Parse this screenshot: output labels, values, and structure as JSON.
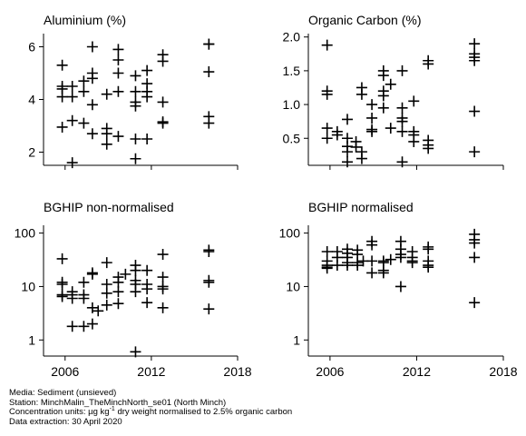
{
  "chart_data": [
    {
      "type": "scatter",
      "title": "Aluminium (%)",
      "xlim": [
        2004.5,
        2018
      ],
      "ylim": [
        1.5,
        6.5
      ],
      "log": false,
      "xticks": [
        2006,
        2012,
        2018
      ],
      "xtick_labels": [
        "",
        "",
        ""
      ],
      "yticks": [
        2,
        4,
        6
      ],
      "ytick_labels": [
        "2",
        "4",
        "6"
      ],
      "points": [
        {
          "x": 2005.8,
          "y": 5.3
        },
        {
          "x": 2005.8,
          "y": 4.5
        },
        {
          "x": 2005.8,
          "y": 4.4
        },
        {
          "x": 2005.8,
          "y": 4.1
        },
        {
          "x": 2005.8,
          "y": 2.95
        },
        {
          "x": 2006.5,
          "y": 4.5
        },
        {
          "x": 2006.5,
          "y": 4.1
        },
        {
          "x": 2006.5,
          "y": 3.2
        },
        {
          "x": 2006.5,
          "y": 1.6
        },
        {
          "x": 2007.3,
          "y": 4.7
        },
        {
          "x": 2007.3,
          "y": 4.3
        },
        {
          "x": 2007.3,
          "y": 3.1
        },
        {
          "x": 2007.9,
          "y": 6.0
        },
        {
          "x": 2007.9,
          "y": 5.0
        },
        {
          "x": 2007.9,
          "y": 4.8
        },
        {
          "x": 2007.9,
          "y": 3.8
        },
        {
          "x": 2007.9,
          "y": 2.7
        },
        {
          "x": 2008.9,
          "y": 4.2
        },
        {
          "x": 2008.9,
          "y": 2.9
        },
        {
          "x": 2008.9,
          "y": 2.7
        },
        {
          "x": 2008.9,
          "y": 2.3
        },
        {
          "x": 2009.7,
          "y": 5.9
        },
        {
          "x": 2009.7,
          "y": 5.5
        },
        {
          "x": 2009.7,
          "y": 5.0
        },
        {
          "x": 2009.7,
          "y": 4.3
        },
        {
          "x": 2009.7,
          "y": 2.6
        },
        {
          "x": 2010.9,
          "y": 4.9
        },
        {
          "x": 2010.9,
          "y": 4.3
        },
        {
          "x": 2010.9,
          "y": 3.9
        },
        {
          "x": 2010.9,
          "y": 3.75
        },
        {
          "x": 2010.9,
          "y": 2.5
        },
        {
          "x": 2010.9,
          "y": 1.75
        },
        {
          "x": 2011.7,
          "y": 5.1
        },
        {
          "x": 2011.7,
          "y": 4.6
        },
        {
          "x": 2011.7,
          "y": 4.3
        },
        {
          "x": 2011.7,
          "y": 4.1
        },
        {
          "x": 2011.7,
          "y": 2.5
        },
        {
          "x": 2012.8,
          "y": 5.7
        },
        {
          "x": 2012.8,
          "y": 5.45
        },
        {
          "x": 2012.8,
          "y": 3.9
        },
        {
          "x": 2012.8,
          "y": 3.15
        },
        {
          "x": 2012.8,
          "y": 3.1
        },
        {
          "x": 2016.0,
          "y": 6.1
        },
        {
          "x": 2016.0,
          "y": 6.1
        },
        {
          "x": 2016.0,
          "y": 5.05
        },
        {
          "x": 2016.0,
          "y": 3.35
        },
        {
          "x": 2016.0,
          "y": 3.1
        }
      ]
    },
    {
      "type": "scatter",
      "title": "Organic Carbon (%)",
      "xlim": [
        2004.5,
        2018
      ],
      "ylim": [
        0.1,
        2.05
      ],
      "log": false,
      "xticks": [
        2006,
        2012,
        2018
      ],
      "xtick_labels": [
        "",
        "",
        ""
      ],
      "yticks": [
        0.5,
        1.0,
        1.5,
        2.0
      ],
      "ytick_labels": [
        "0.5",
        "1.0",
        "1.5",
        "2.0"
      ],
      "points": [
        {
          "x": 2005.8,
          "y": 1.88
        },
        {
          "x": 2005.8,
          "y": 1.2
        },
        {
          "x": 2005.8,
          "y": 1.15
        },
        {
          "x": 2005.8,
          "y": 0.65
        },
        {
          "x": 2005.8,
          "y": 0.5
        },
        {
          "x": 2006.5,
          "y": 0.6
        },
        {
          "x": 2006.5,
          "y": 0.55
        },
        {
          "x": 2007.2,
          "y": 0.78
        },
        {
          "x": 2007.2,
          "y": 0.5
        },
        {
          "x": 2007.2,
          "y": 0.38
        },
        {
          "x": 2007.2,
          "y": 0.3
        },
        {
          "x": 2007.2,
          "y": 0.15
        },
        {
          "x": 2007.8,
          "y": 0.45
        },
        {
          "x": 2007.8,
          "y": 0.37
        },
        {
          "x": 2008.2,
          "y": 1.25
        },
        {
          "x": 2008.2,
          "y": 1.15
        },
        {
          "x": 2008.2,
          "y": 0.3
        },
        {
          "x": 2008.2,
          "y": 0.2
        },
        {
          "x": 2008.9,
          "y": 1.0
        },
        {
          "x": 2008.9,
          "y": 0.8
        },
        {
          "x": 2008.9,
          "y": 0.63
        },
        {
          "x": 2008.9,
          "y": 0.6
        },
        {
          "x": 2009.7,
          "y": 1.5
        },
        {
          "x": 2009.7,
          "y": 1.43
        },
        {
          "x": 2009.7,
          "y": 1.2
        },
        {
          "x": 2009.7,
          "y": 1.13
        },
        {
          "x": 2009.7,
          "y": 0.95
        },
        {
          "x": 2010.2,
          "y": 1.3
        },
        {
          "x": 2010.2,
          "y": 0.65
        },
        {
          "x": 2011.0,
          "y": 1.5
        },
        {
          "x": 2011.0,
          "y": 0.95
        },
        {
          "x": 2011.0,
          "y": 0.8
        },
        {
          "x": 2011.0,
          "y": 0.75
        },
        {
          "x": 2011.0,
          "y": 0.6
        },
        {
          "x": 2011.0,
          "y": 0.15
        },
        {
          "x": 2011.8,
          "y": 1.05
        },
        {
          "x": 2011.8,
          "y": 0.6
        },
        {
          "x": 2011.8,
          "y": 0.55
        },
        {
          "x": 2011.8,
          "y": 0.45
        },
        {
          "x": 2012.8,
          "y": 1.65
        },
        {
          "x": 2012.8,
          "y": 1.6
        },
        {
          "x": 2012.8,
          "y": 0.47
        },
        {
          "x": 2012.8,
          "y": 0.4
        },
        {
          "x": 2012.8,
          "y": 0.35
        },
        {
          "x": 2016.0,
          "y": 1.9
        },
        {
          "x": 2016.0,
          "y": 1.75
        },
        {
          "x": 2016.0,
          "y": 1.7
        },
        {
          "x": 2016.0,
          "y": 1.65
        },
        {
          "x": 2016.0,
          "y": 0.9
        },
        {
          "x": 2016.0,
          "y": 0.3
        }
      ]
    },
    {
      "type": "scatter",
      "title": "BGHIP non-normalised",
      "xlim": [
        2004.5,
        2018
      ],
      "ylim": [
        0.5,
        140
      ],
      "log": true,
      "xticks": [
        2006,
        2012,
        2018
      ],
      "xtick_labels": [
        "2006",
        "2012",
        "2018"
      ],
      "yticks": [
        1,
        10,
        100
      ],
      "ytick_labels": [
        "1",
        "10",
        "100"
      ],
      "points": [
        {
          "x": 2005.8,
          "y": 33
        },
        {
          "x": 2005.8,
          "y": 12
        },
        {
          "x": 2005.8,
          "y": 11
        },
        {
          "x": 2005.8,
          "y": 7
        },
        {
          "x": 2005.8,
          "y": 6.5
        },
        {
          "x": 2006.5,
          "y": 8
        },
        {
          "x": 2006.5,
          "y": 7
        },
        {
          "x": 2006.5,
          "y": 6
        },
        {
          "x": 2006.5,
          "y": 1.8
        },
        {
          "x": 2007.3,
          "y": 12
        },
        {
          "x": 2007.3,
          "y": 7
        },
        {
          "x": 2007.3,
          "y": 6
        },
        {
          "x": 2007.3,
          "y": 1.8
        },
        {
          "x": 2007.9,
          "y": 18
        },
        {
          "x": 2007.9,
          "y": 17
        },
        {
          "x": 2007.9,
          "y": 4
        },
        {
          "x": 2007.9,
          "y": 2.0
        },
        {
          "x": 2008.3,
          "y": 3.5
        },
        {
          "x": 2008.9,
          "y": 28
        },
        {
          "x": 2008.9,
          "y": 11
        },
        {
          "x": 2008.9,
          "y": 7.5
        },
        {
          "x": 2008.9,
          "y": 4.5
        },
        {
          "x": 2009.7,
          "y": 15
        },
        {
          "x": 2009.7,
          "y": 12
        },
        {
          "x": 2009.7,
          "y": 8
        },
        {
          "x": 2009.7,
          "y": 4.8
        },
        {
          "x": 2010.2,
          "y": 17
        },
        {
          "x": 2010.9,
          "y": 25
        },
        {
          "x": 2010.9,
          "y": 20
        },
        {
          "x": 2010.9,
          "y": 13
        },
        {
          "x": 2010.9,
          "y": 11
        },
        {
          "x": 2010.9,
          "y": 8
        },
        {
          "x": 2010.9,
          "y": 0.6
        },
        {
          "x": 2011.7,
          "y": 20
        },
        {
          "x": 2011.7,
          "y": 11
        },
        {
          "x": 2011.7,
          "y": 9
        },
        {
          "x": 2011.7,
          "y": 5
        },
        {
          "x": 2012.8,
          "y": 40
        },
        {
          "x": 2012.8,
          "y": 15
        },
        {
          "x": 2012.8,
          "y": 10
        },
        {
          "x": 2012.8,
          "y": 9
        },
        {
          "x": 2012.8,
          "y": 4
        },
        {
          "x": 2016.0,
          "y": 48
        },
        {
          "x": 2016.0,
          "y": 45
        },
        {
          "x": 2016.0,
          "y": 13
        },
        {
          "x": 2016.0,
          "y": 12
        },
        {
          "x": 2016.0,
          "y": 3.8
        }
      ]
    },
    {
      "type": "scatter",
      "title": "BGHIP normalised",
      "xlim": [
        2004.5,
        2018
      ],
      "ylim": [
        0.5,
        140
      ],
      "log": true,
      "xticks": [
        2006,
        2012,
        2018
      ],
      "xtick_labels": [
        "2006",
        "2012",
        "2018"
      ],
      "yticks": [
        1,
        10,
        100
      ],
      "ytick_labels": [
        "1",
        "10",
        "100"
      ],
      "points": [
        {
          "x": 2005.8,
          "y": 45
        },
        {
          "x": 2005.8,
          "y": 30
        },
        {
          "x": 2005.8,
          "y": 25
        },
        {
          "x": 2005.8,
          "y": 23
        },
        {
          "x": 2005.8,
          "y": 22
        },
        {
          "x": 2006.5,
          "y": 45
        },
        {
          "x": 2006.5,
          "y": 35
        },
        {
          "x": 2006.5,
          "y": 25
        },
        {
          "x": 2007.2,
          "y": 50
        },
        {
          "x": 2007.2,
          "y": 42
        },
        {
          "x": 2007.2,
          "y": 35
        },
        {
          "x": 2007.2,
          "y": 28
        },
        {
          "x": 2007.2,
          "y": 25
        },
        {
          "x": 2007.9,
          "y": 48
        },
        {
          "x": 2007.9,
          "y": 40
        },
        {
          "x": 2007.9,
          "y": 28
        },
        {
          "x": 2007.9,
          "y": 25
        },
        {
          "x": 2008.3,
          "y": 30
        },
        {
          "x": 2008.9,
          "y": 70
        },
        {
          "x": 2008.9,
          "y": 60
        },
        {
          "x": 2008.9,
          "y": 30
        },
        {
          "x": 2008.9,
          "y": 18
        },
        {
          "x": 2009.7,
          "y": 30
        },
        {
          "x": 2009.7,
          "y": 28
        },
        {
          "x": 2009.7,
          "y": 20
        },
        {
          "x": 2009.7,
          "y": 18
        },
        {
          "x": 2010.2,
          "y": 32
        },
        {
          "x": 2010.9,
          "y": 70
        },
        {
          "x": 2010.9,
          "y": 50
        },
        {
          "x": 2010.9,
          "y": 40
        },
        {
          "x": 2010.9,
          "y": 35
        },
        {
          "x": 2010.9,
          "y": 10
        },
        {
          "x": 2011.7,
          "y": 45
        },
        {
          "x": 2011.7,
          "y": 35
        },
        {
          "x": 2011.7,
          "y": 30
        },
        {
          "x": 2011.7,
          "y": 28
        },
        {
          "x": 2012.8,
          "y": 55
        },
        {
          "x": 2012.8,
          "y": 50
        },
        {
          "x": 2012.8,
          "y": 30
        },
        {
          "x": 2012.8,
          "y": 25
        },
        {
          "x": 2012.8,
          "y": 23
        },
        {
          "x": 2016.0,
          "y": 95
        },
        {
          "x": 2016.0,
          "y": 75
        },
        {
          "x": 2016.0,
          "y": 65
        },
        {
          "x": 2016.0,
          "y": 35
        },
        {
          "x": 2016.0,
          "y": 5
        }
      ]
    }
  ],
  "footer": {
    "media": "Media: Sediment (unsieved)",
    "station": "Station: MinchMalin_TheMinchNorth_se01 (North Minch)",
    "units_prefix": "Concentration units:  µg kg",
    "units_sup": "-1",
    "units_suffix": " dry weight normalised to 2.5% organic carbon",
    "extraction": "Data extraction: 30 April 2020"
  }
}
